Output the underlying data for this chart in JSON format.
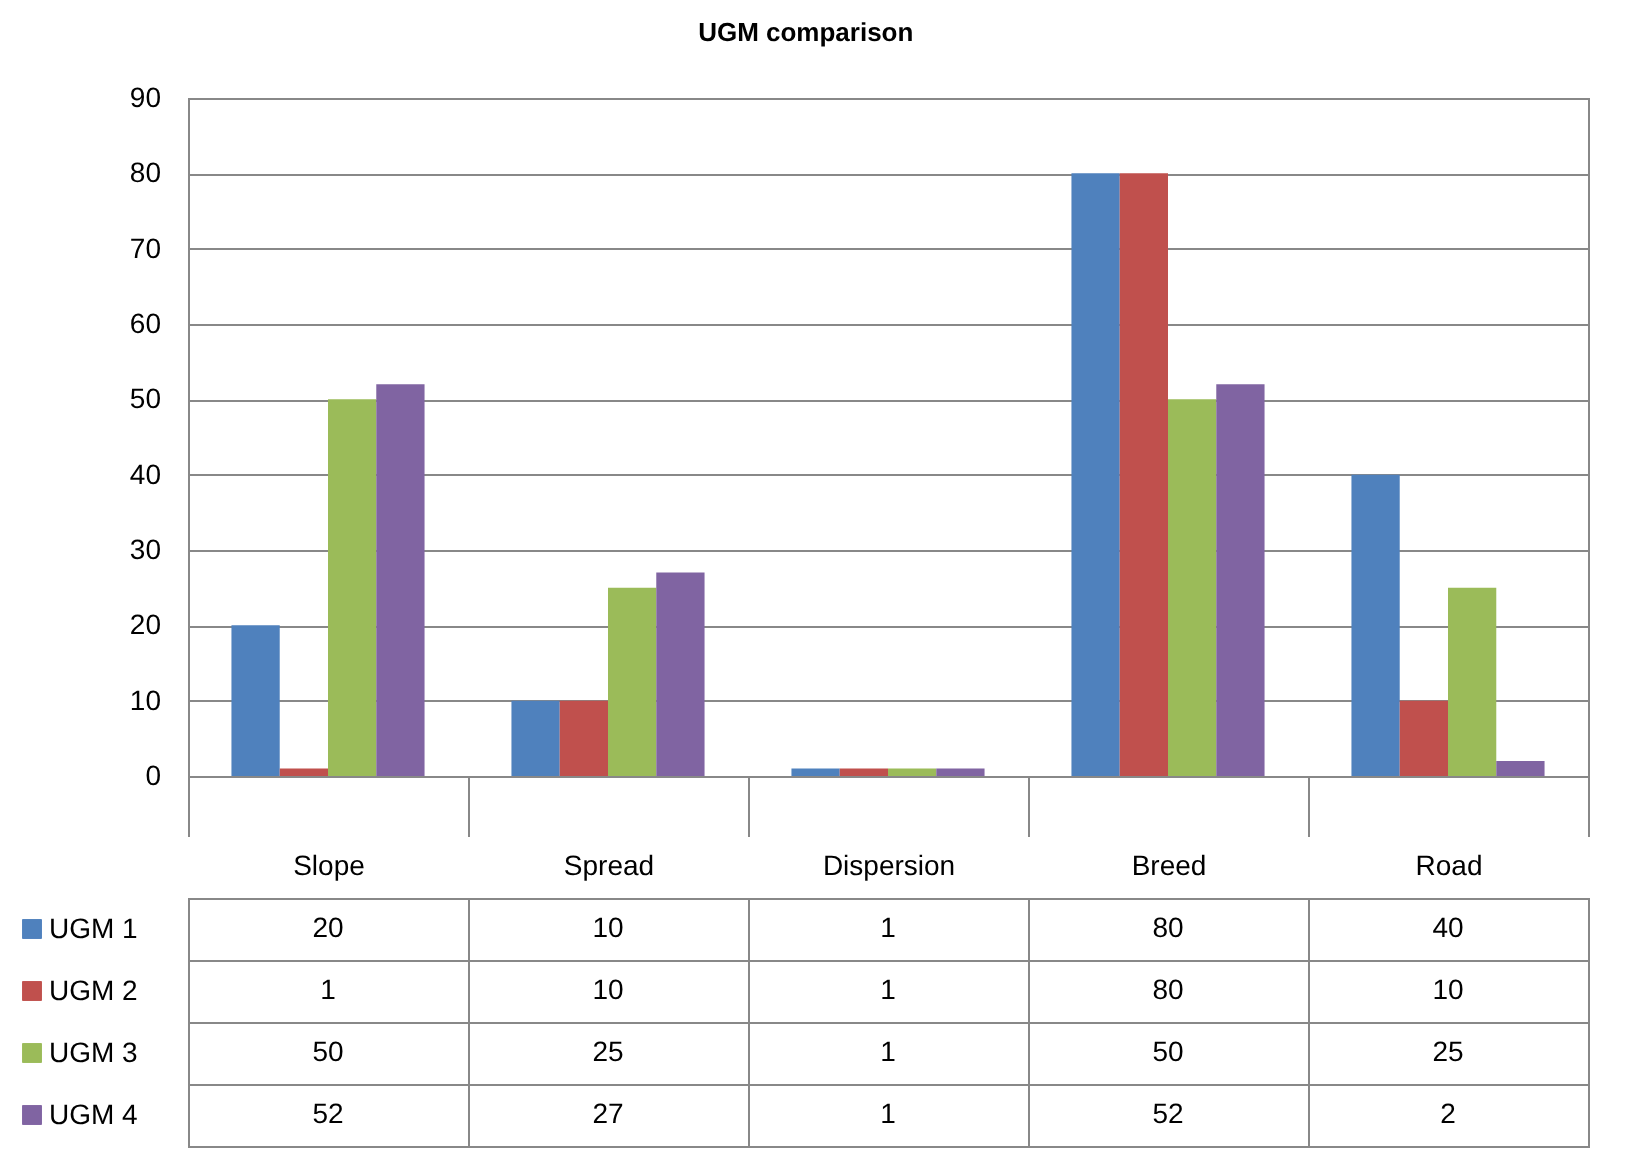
{
  "chart_data": {
    "type": "bar",
    "title": "UGM comparison",
    "categories": [
      "Slope",
      "Spread",
      "Dispersion",
      "Breed",
      "Road"
    ],
    "series": [
      {
        "name": "UGM 1",
        "color": "#4f81bd",
        "values": [
          20,
          10,
          1,
          80,
          40
        ]
      },
      {
        "name": "UGM 2",
        "color": "#c0504d",
        "values": [
          1,
          10,
          1,
          80,
          10
        ]
      },
      {
        "name": "UGM 3",
        "color": "#9bbb59",
        "values": [
          50,
          25,
          1,
          50,
          25
        ]
      },
      {
        "name": "UGM 4",
        "color": "#8064a2",
        "values": [
          52,
          27,
          1,
          52,
          2
        ]
      }
    ],
    "ylim": [
      0,
      90
    ],
    "yticks": [
      0,
      10,
      20,
      30,
      40,
      50,
      60,
      70,
      80,
      90
    ],
    "grid": "y",
    "legend": "bottom",
    "data_labels": true
  }
}
